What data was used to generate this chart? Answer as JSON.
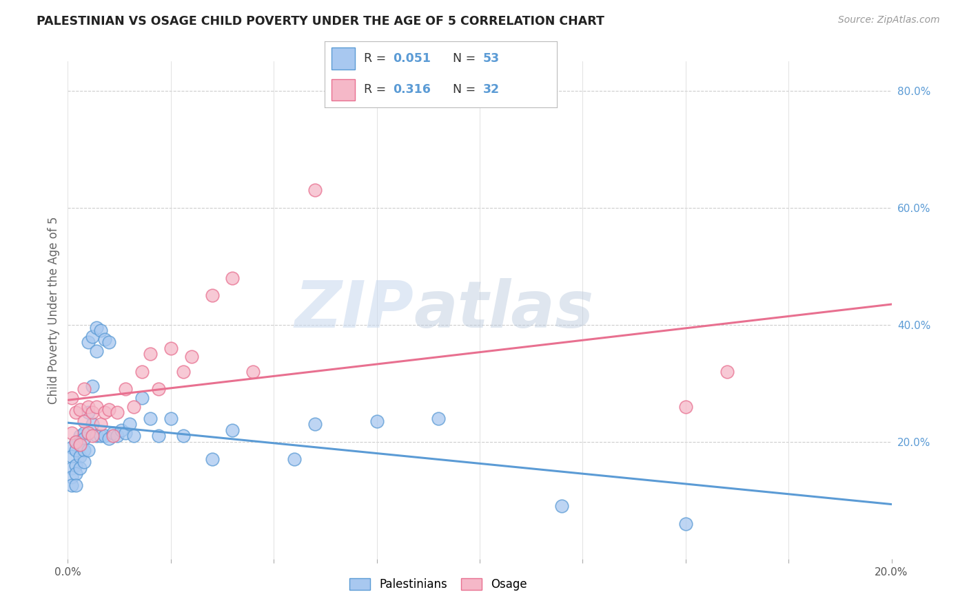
{
  "title": "PALESTINIAN VS OSAGE CHILD POVERTY UNDER THE AGE OF 5 CORRELATION CHART",
  "source": "Source: ZipAtlas.com",
  "ylabel": "Child Poverty Under the Age of 5",
  "xlim": [
    0.0,
    0.2
  ],
  "ylim": [
    0.0,
    0.85
  ],
  "xticks": [
    0.0,
    0.025,
    0.05,
    0.075,
    0.1,
    0.125,
    0.15,
    0.175,
    0.2
  ],
  "xtick_labels": [
    "0.0%",
    "",
    "",
    "",
    "",
    "",
    "",
    "",
    "20.0%"
  ],
  "yticks_right": [
    0.2,
    0.4,
    0.6,
    0.8
  ],
  "ytick_labels_right": [
    "20.0%",
    "40.0%",
    "60.0%",
    "80.0%"
  ],
  "watermark_zip": "ZIP",
  "watermark_atlas": "atlas",
  "legend_R1": "0.051",
  "legend_N1": "53",
  "legend_R2": "0.316",
  "legend_N2": "32",
  "blue_fill": "#A8C8F0",
  "pink_fill": "#F5B8C8",
  "blue_edge": "#5B9BD5",
  "pink_edge": "#E87090",
  "blue_line": "#5B9BD5",
  "pink_line": "#E87090",
  "palestinians_x": [
    0.001,
    0.001,
    0.001,
    0.001,
    0.001,
    0.002,
    0.002,
    0.002,
    0.002,
    0.002,
    0.003,
    0.003,
    0.003,
    0.003,
    0.004,
    0.004,
    0.004,
    0.004,
    0.005,
    0.005,
    0.005,
    0.005,
    0.006,
    0.006,
    0.006,
    0.007,
    0.007,
    0.007,
    0.008,
    0.008,
    0.009,
    0.009,
    0.01,
    0.01,
    0.011,
    0.012,
    0.013,
    0.014,
    0.015,
    0.016,
    0.018,
    0.02,
    0.022,
    0.025,
    0.028,
    0.035,
    0.04,
    0.055,
    0.06,
    0.075,
    0.09,
    0.12,
    0.15
  ],
  "palestinians_y": [
    0.19,
    0.175,
    0.155,
    0.14,
    0.125,
    0.2,
    0.185,
    0.16,
    0.145,
    0.125,
    0.21,
    0.195,
    0.175,
    0.155,
    0.215,
    0.205,
    0.185,
    0.165,
    0.37,
    0.25,
    0.215,
    0.185,
    0.38,
    0.295,
    0.23,
    0.395,
    0.355,
    0.21,
    0.39,
    0.21,
    0.375,
    0.21,
    0.37,
    0.205,
    0.215,
    0.21,
    0.22,
    0.215,
    0.23,
    0.21,
    0.275,
    0.24,
    0.21,
    0.24,
    0.21,
    0.17,
    0.22,
    0.17,
    0.23,
    0.235,
    0.24,
    0.09,
    0.06
  ],
  "osage_x": [
    0.001,
    0.001,
    0.002,
    0.002,
    0.003,
    0.003,
    0.004,
    0.004,
    0.005,
    0.005,
    0.006,
    0.006,
    0.007,
    0.008,
    0.009,
    0.01,
    0.011,
    0.012,
    0.014,
    0.016,
    0.018,
    0.02,
    0.022,
    0.025,
    0.028,
    0.03,
    0.035,
    0.04,
    0.045,
    0.06,
    0.15,
    0.16
  ],
  "osage_y": [
    0.275,
    0.215,
    0.25,
    0.2,
    0.255,
    0.195,
    0.29,
    0.235,
    0.26,
    0.215,
    0.25,
    0.21,
    0.26,
    0.23,
    0.25,
    0.255,
    0.21,
    0.25,
    0.29,
    0.26,
    0.32,
    0.35,
    0.29,
    0.36,
    0.32,
    0.345,
    0.45,
    0.48,
    0.32,
    0.63,
    0.26,
    0.32
  ]
}
